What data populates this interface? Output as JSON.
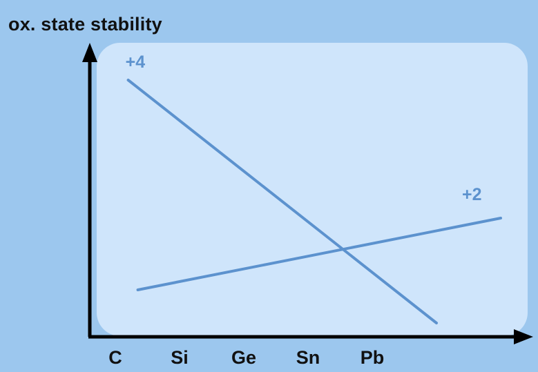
{
  "chart_data": {
    "type": "line",
    "title": "",
    "ylabel": "ox. state stability",
    "xlabel": "",
    "categories": [
      "C",
      "Si",
      "Ge",
      "Sn",
      "Pb"
    ],
    "x_range": [
      1,
      7
    ],
    "ylim": [
      0,
      10
    ],
    "grid": false,
    "series": [
      {
        "name": "+4",
        "x": [
          1.2,
          6.0
        ],
        "y": [
          9.3,
          0.5
        ]
      },
      {
        "name": "+2",
        "x": [
          1.35,
          7.0
        ],
        "y": [
          1.7,
          4.3
        ]
      }
    ],
    "colors": {
      "line": "#5c92ce",
      "background": "#9cc7ee",
      "plot_area": "#cfe5fb",
      "axis": "#000000",
      "label": "#5c92ce"
    }
  }
}
